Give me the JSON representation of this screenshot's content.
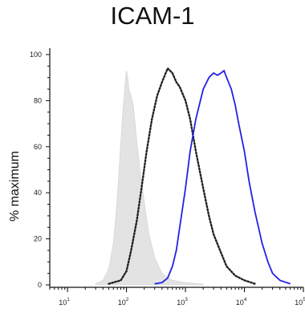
{
  "chart_data": {
    "type": "area",
    "title": "ICAM-1",
    "xlabel": "",
    "ylabel": "% maximum",
    "x_scale": "log",
    "xlim": [
      5,
      100000
    ],
    "ylim": [
      0,
      100
    ],
    "x_ticks": [
      {
        "value": 10,
        "base": "10",
        "exp": "1"
      },
      {
        "value": 100,
        "base": "10",
        "exp": "2"
      },
      {
        "value": 1000,
        "base": "10",
        "exp": "3"
      },
      {
        "value": 10000,
        "base": "10",
        "exp": "4"
      },
      {
        "value": 100000,
        "base": "10",
        "exp": "5"
      }
    ],
    "y_ticks": [
      0,
      20,
      40,
      60,
      80,
      100
    ],
    "grid": false,
    "legend": "none",
    "series": [
      {
        "style": "gray-filled",
        "color": "#e3e3e3",
        "points": [
          [
            30,
            0.5
          ],
          [
            40,
            2
          ],
          [
            50,
            7
          ],
          [
            60,
            18
          ],
          [
            65,
            28
          ],
          [
            70,
            38
          ],
          [
            75,
            50
          ],
          [
            80,
            62
          ],
          [
            85,
            72
          ],
          [
            90,
            80
          ],
          [
            95,
            88
          ],
          [
            100,
            93
          ],
          [
            105,
            90
          ],
          [
            110,
            85
          ],
          [
            120,
            82
          ],
          [
            130,
            78
          ],
          [
            140,
            70
          ],
          [
            150,
            62
          ],
          [
            170,
            50
          ],
          [
            200,
            36
          ],
          [
            240,
            22
          ],
          [
            300,
            12
          ],
          [
            400,
            5
          ],
          [
            600,
            2
          ],
          [
            1000,
            1
          ],
          [
            2000,
            0.3
          ]
        ]
      },
      {
        "style": "black-dotted",
        "color": "#222222",
        "points": [
          [
            50,
            0.5
          ],
          [
            80,
            2
          ],
          [
            100,
            6
          ],
          [
            120,
            15
          ],
          [
            150,
            28
          ],
          [
            180,
            42
          ],
          [
            220,
            58
          ],
          [
            270,
            72
          ],
          [
            330,
            82
          ],
          [
            400,
            88
          ],
          [
            500,
            94
          ],
          [
            600,
            92
          ],
          [
            700,
            88
          ],
          [
            800,
            86
          ],
          [
            1000,
            80
          ],
          [
            1200,
            72
          ],
          [
            1500,
            58
          ],
          [
            2000,
            42
          ],
          [
            2500,
            30
          ],
          [
            3000,
            22
          ],
          [
            4000,
            14
          ],
          [
            5000,
            8
          ],
          [
            7000,
            4
          ],
          [
            10000,
            2
          ],
          [
            15000,
            0.5
          ]
        ]
      },
      {
        "style": "blue-solid",
        "color": "#2222e6",
        "points": [
          [
            300,
            0.5
          ],
          [
            400,
            1
          ],
          [
            500,
            3
          ],
          [
            600,
            8
          ],
          [
            700,
            15
          ],
          [
            800,
            25
          ],
          [
            1000,
            42
          ],
          [
            1200,
            58
          ],
          [
            1500,
            72
          ],
          [
            2000,
            85
          ],
          [
            2500,
            90
          ],
          [
            3000,
            92
          ],
          [
            3500,
            91
          ],
          [
            4000,
            92
          ],
          [
            4500,
            93
          ],
          [
            5000,
            90
          ],
          [
            6000,
            85
          ],
          [
            7000,
            78
          ],
          [
            8000,
            70
          ],
          [
            10000,
            58
          ],
          [
            12000,
            45
          ],
          [
            15000,
            32
          ],
          [
            20000,
            18
          ],
          [
            25000,
            10
          ],
          [
            30000,
            5
          ],
          [
            40000,
            2
          ],
          [
            60000,
            0.5
          ]
        ]
      }
    ]
  }
}
